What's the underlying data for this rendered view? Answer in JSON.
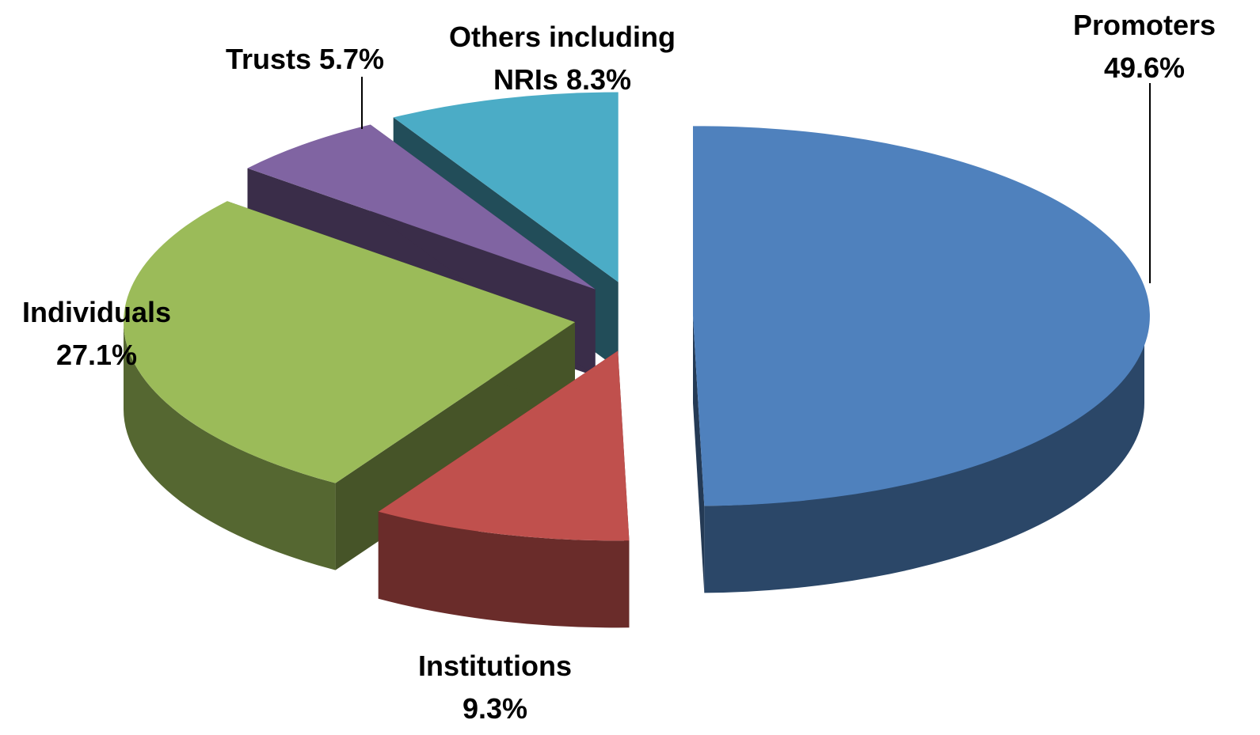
{
  "chart_data": {
    "type": "pie",
    "three_d": true,
    "exploded": true,
    "categories": [
      "Promoters",
      "Institutions",
      "Individuals",
      "Trusts",
      "Others including NRIs"
    ],
    "values": [
      49.6,
      9.3,
      27.1,
      5.7,
      8.3
    ],
    "value_labels": [
      "49.6%",
      "9.3%",
      "27.1%",
      "5.7%",
      "8.3%"
    ],
    "colors": [
      "#4f81bd",
      "#c0504d",
      "#9bbb59",
      "#8064a2",
      "#4bacc6"
    ]
  }
}
